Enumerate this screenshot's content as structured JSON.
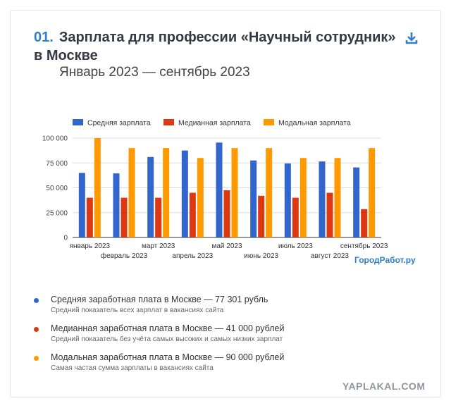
{
  "header": {
    "number": "01.",
    "title_line1": "Зарплата для профессии «Научный сотрудник»",
    "title_line2": "в Москве",
    "subtitle": "Январь 2023 — сентябрь 2023"
  },
  "icons": {
    "download": "download-icon"
  },
  "brand": "ГородРабот.ру",
  "stats": [
    {
      "main": "Средняя заработная плата в Москве — 77 301 рубль",
      "note": "Средний показатель всех зарплат в вакансиях сайта",
      "color": "#3366cc"
    },
    {
      "main": "Медианная заработная плата в Москве — 41 000 рублей",
      "note": "Средний показатель без учёта самых высоких и самых низких зарплат",
      "color": "#dc3912"
    },
    {
      "main": "Модальная заработная плата в Москве — 90 000 рублей",
      "note": "Самая частая сумма зарплаты в вакансиях сайта",
      "color": "#ff9900"
    }
  ],
  "watermark": "YAPLAKAL.COM",
  "chart_data": {
    "type": "bar",
    "categories": [
      "январь 2023",
      "февраль 2023",
      "март 2023",
      "апрель 2023",
      "май 2023",
      "июнь 2023",
      "июль 2023",
      "август 2023",
      "сентябрь 2023"
    ],
    "series": [
      {
        "name": "Средняя зарплата",
        "color": "#3366cc",
        "values": [
          65000,
          64500,
          81000,
          87500,
          95500,
          77500,
          74500,
          76500,
          70500
        ]
      },
      {
        "name": "Медианная зарплата",
        "color": "#dc3912",
        "values": [
          40000,
          40000,
          40000,
          45000,
          47500,
          42000,
          40000,
          45000,
          28500
        ]
      },
      {
        "name": "Модальная зарплата",
        "color": "#ff9900",
        "values": [
          100000,
          90000,
          90000,
          80000,
          90000,
          90000,
          80000,
          80000,
          90000
        ]
      }
    ],
    "ylim": [
      0,
      100000
    ],
    "yticks": [
      0,
      25000,
      50000,
      75000,
      100000
    ],
    "ytick_labels": [
      "0",
      "25 000",
      "50 000",
      "75 000",
      "100 000"
    ],
    "legend_position": "top",
    "grid": true
  }
}
